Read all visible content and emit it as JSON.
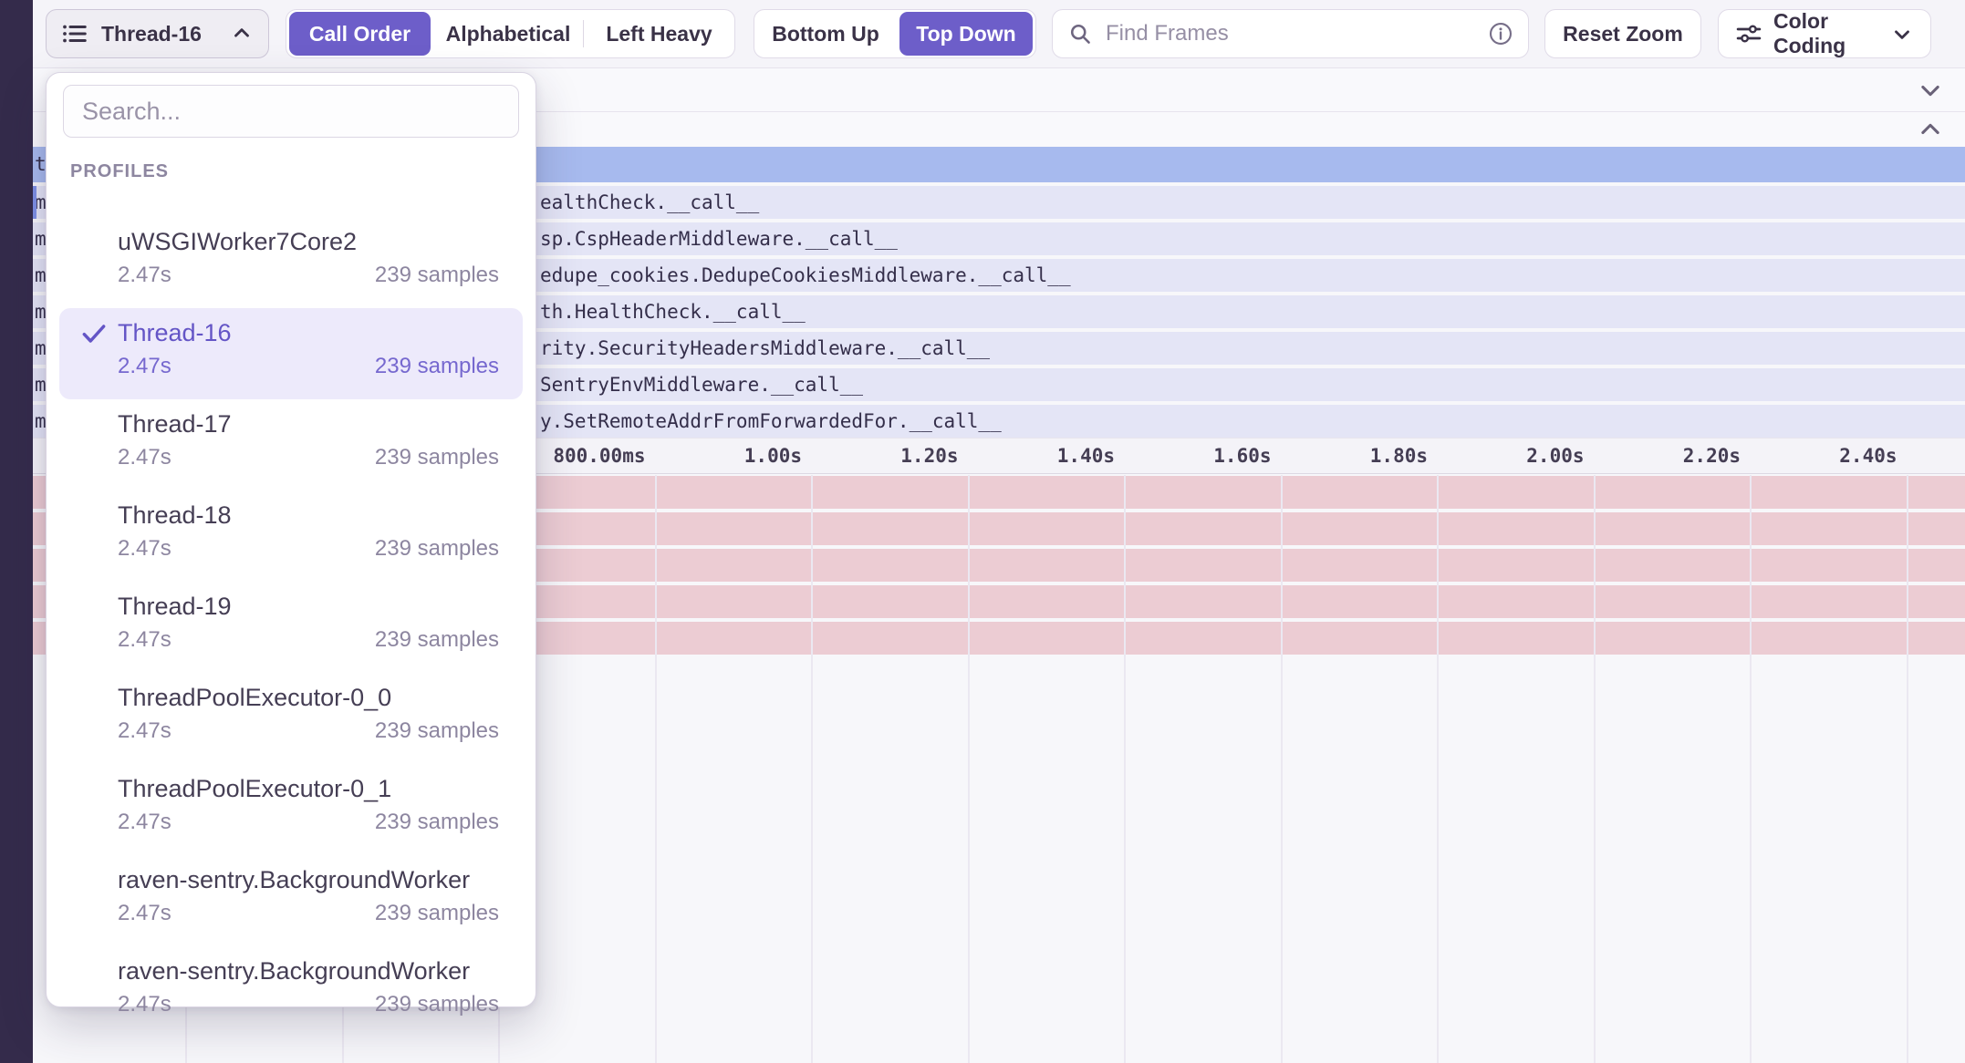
{
  "toolbar": {
    "thread_selector_label": "Thread-16",
    "sort_options": [
      "Call Order",
      "Alphabetical",
      "Left Heavy"
    ],
    "sort_selected": "Call Order",
    "direction_options": [
      "Bottom Up",
      "Top Down"
    ],
    "direction_selected": "Top Down",
    "find_placeholder": "Find Frames",
    "reset_zoom_label": "Reset Zoom",
    "color_coding_label": "Color Coding"
  },
  "dropdown": {
    "search_placeholder": "Search...",
    "section_label": "PROFILES",
    "items": [
      {
        "name": "uWSGIWorker7Core2",
        "duration": "2.47s",
        "samples": "239 samples",
        "selected": false
      },
      {
        "name": "Thread-16",
        "duration": "2.47s",
        "samples": "239 samples",
        "selected": true
      },
      {
        "name": "Thread-17",
        "duration": "2.47s",
        "samples": "239 samples",
        "selected": false
      },
      {
        "name": "Thread-18",
        "duration": "2.47s",
        "samples": "239 samples",
        "selected": false
      },
      {
        "name": "Thread-19",
        "duration": "2.47s",
        "samples": "239 samples",
        "selected": false
      },
      {
        "name": "ThreadPoolExecutor-0_0",
        "duration": "2.47s",
        "samples": "239 samples",
        "selected": false
      },
      {
        "name": "ThreadPoolExecutor-0_1",
        "duration": "2.47s",
        "samples": "239 samples",
        "selected": false
      },
      {
        "name": "raven-sentry.BackgroundWorker",
        "duration": "2.47s",
        "samples": "239 samples",
        "selected": false
      },
      {
        "name": "raven-sentry.BackgroundWorker",
        "duration": "2.47s",
        "samples": "239 samples",
        "selected": false
      }
    ]
  },
  "flamegraph": {
    "root_row": {
      "edge_char": "t"
    },
    "rows": [
      {
        "edge_char": "m",
        "text": "ealthCheck.__call__"
      },
      {
        "edge_char": "m",
        "text": "sp.CspHeaderMiddleware.__call__"
      },
      {
        "edge_char": "m",
        "text": "edupe_cookies.DedupeCookiesMiddleware.__call__"
      },
      {
        "edge_char": "m",
        "text": "th.HealthCheck.__call__"
      },
      {
        "edge_char": "m",
        "text": "rity.SecurityHeadersMiddleware.__call__"
      },
      {
        "edge_char": "m",
        "text": "SentryEnvMiddleware.__call__"
      },
      {
        "edge_char": "m",
        "text": "y.SetRemoteAddrFromForwardedFor.__call__"
      }
    ],
    "axis_tick_labels": [
      "800.00ms",
      "1.00s",
      "1.20s",
      "1.40s",
      "1.60s",
      "1.80s",
      "2.00s",
      "2.20s",
      "2.40s"
    ],
    "pink_row_count": 5
  },
  "colors": {
    "accent_purple": "#6d5ec9",
    "selected_row_blue": "#a7baee",
    "frame_row_lavender": "#e4e5f6",
    "span_row_pink": "#ecccd3",
    "sidebar_dark": "#342b4b"
  }
}
